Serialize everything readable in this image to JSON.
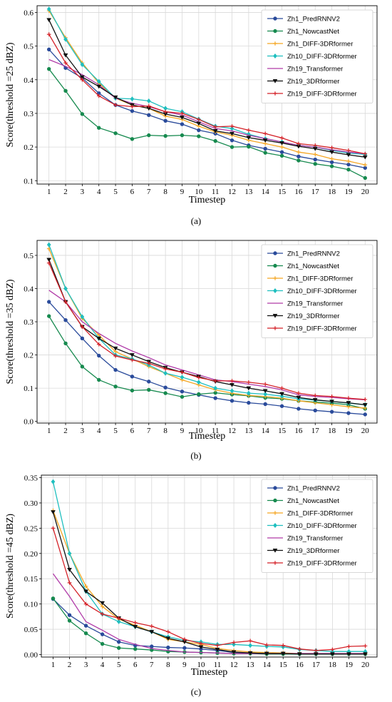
{
  "chart_data": [
    {
      "type": "line",
      "caption": "(a)",
      "xlabel": "Timestep",
      "ylabel": "Score(threshold =25 dBZ)",
      "x": [
        1,
        2,
        3,
        4,
        5,
        6,
        7,
        8,
        9,
        10,
        11,
        12,
        13,
        14,
        15,
        16,
        17,
        18,
        19,
        20
      ],
      "xticks": [
        "1",
        "2",
        "3",
        "4",
        "5",
        "6",
        "7",
        "8",
        "9",
        "10",
        "11",
        "12",
        "13",
        "14",
        "15",
        "16",
        "17",
        "18",
        "19",
        "20"
      ],
      "ylim": [
        0.09,
        0.62
      ],
      "yticks": [
        "0.1",
        "0.2",
        "0.3",
        "0.4",
        "0.5",
        "0.6"
      ],
      "grid": true,
      "legend": "top-right",
      "series": [
        {
          "name": "Zh1_PredRNNV2",
          "color": "#2a4b9b",
          "marker": "circle",
          "values": [
            0.49,
            0.435,
            0.405,
            0.36,
            0.325,
            0.307,
            0.295,
            0.278,
            0.268,
            0.25,
            0.24,
            0.22,
            0.205,
            0.195,
            0.185,
            0.172,
            0.163,
            0.155,
            0.148,
            0.138
          ]
        },
        {
          "name": "Zh1_NowcastNet",
          "color": "#178a4f",
          "marker": "circle",
          "values": [
            0.432,
            0.367,
            0.298,
            0.257,
            0.241,
            0.224,
            0.235,
            0.233,
            0.235,
            0.232,
            0.218,
            0.2,
            0.201,
            0.183,
            0.174,
            0.16,
            0.15,
            0.143,
            0.133,
            0.108
          ]
        },
        {
          "name": "Zh1_DIFF-3DRformer",
          "color": "#f5a623",
          "marker": "plus",
          "values": [
            0.605,
            0.525,
            0.45,
            0.39,
            0.345,
            0.325,
            0.315,
            0.292,
            0.282,
            0.262,
            0.245,
            0.235,
            0.22,
            0.21,
            0.2,
            0.185,
            0.178,
            0.165,
            0.158,
            0.147
          ]
        },
        {
          "name": "Zh10_DIFF-3DRformer",
          "color": "#1fbfbf",
          "marker": "diamond",
          "values": [
            0.61,
            0.52,
            0.445,
            0.395,
            0.345,
            0.343,
            0.337,
            0.315,
            0.305,
            0.283,
            0.262,
            0.255,
            0.238,
            0.225,
            0.215,
            0.205,
            0.2,
            0.19,
            0.182,
            0.178
          ]
        },
        {
          "name": "Zh19_Transformer",
          "color": "#b03aa8",
          "marker": "none",
          "values": [
            0.46,
            0.44,
            0.415,
            0.385,
            0.345,
            0.33,
            0.32,
            0.305,
            0.295,
            0.275,
            0.255,
            0.248,
            0.235,
            0.225,
            0.215,
            0.205,
            0.2,
            0.192,
            0.185,
            0.18
          ]
        },
        {
          "name": "Zh19_3DRformer",
          "color": "#111111",
          "marker": "triangle-down",
          "values": [
            0.578,
            0.473,
            0.408,
            0.38,
            0.348,
            0.325,
            0.315,
            0.298,
            0.288,
            0.27,
            0.248,
            0.24,
            0.228,
            0.22,
            0.212,
            0.202,
            0.195,
            0.185,
            0.177,
            0.17
          ]
        },
        {
          "name": "Zh19_DIFF-3DRformer",
          "color": "#d42027",
          "marker": "plus",
          "values": [
            0.535,
            0.45,
            0.4,
            0.352,
            0.325,
            0.32,
            0.322,
            0.305,
            0.3,
            0.282,
            0.26,
            0.262,
            0.25,
            0.24,
            0.227,
            0.21,
            0.205,
            0.198,
            0.19,
            0.18
          ]
        }
      ]
    },
    {
      "type": "line",
      "caption": "(b)",
      "xlabel": "Timestep",
      "ylabel": "Score(threshold =35 dBZ)",
      "x": [
        1,
        2,
        3,
        4,
        5,
        6,
        7,
        8,
        9,
        10,
        11,
        12,
        13,
        14,
        15,
        16,
        17,
        18,
        19,
        20
      ],
      "xticks": [
        "1",
        "2",
        "3",
        "4",
        "5",
        "6",
        "7",
        "8",
        "9",
        "10",
        "11",
        "12",
        "13",
        "14",
        "15",
        "16",
        "17",
        "18",
        "19",
        "20"
      ],
      "ylim": [
        -0.005,
        0.545
      ],
      "yticks": [
        "0.0",
        "0.1",
        "0.2",
        "0.3",
        "0.4",
        "0.5"
      ],
      "grid": true,
      "legend": "top-right",
      "series": [
        {
          "name": "Zh1_PredRNNV2",
          "color": "#2a4b9b",
          "marker": "circle",
          "values": [
            0.36,
            0.305,
            0.25,
            0.198,
            0.155,
            0.135,
            0.12,
            0.102,
            0.09,
            0.08,
            0.07,
            0.062,
            0.056,
            0.052,
            0.046,
            0.038,
            0.033,
            0.029,
            0.025,
            0.021
          ]
        },
        {
          "name": "Zh1_NowcastNet",
          "color": "#178a4f",
          "marker": "circle",
          "values": [
            0.317,
            0.235,
            0.165,
            0.125,
            0.105,
            0.093,
            0.095,
            0.085,
            0.074,
            0.082,
            0.086,
            0.081,
            0.077,
            0.071,
            0.068,
            0.062,
            0.058,
            0.055,
            0.05,
            0.038
          ]
        },
        {
          "name": "Zh1_DIFF-3DRformer",
          "color": "#f5a623",
          "marker": "plus",
          "values": [
            0.52,
            0.4,
            0.31,
            0.26,
            0.21,
            0.188,
            0.165,
            0.145,
            0.125,
            0.11,
            0.095,
            0.085,
            0.078,
            0.075,
            0.07,
            0.062,
            0.056,
            0.05,
            0.044,
            0.04
          ]
        },
        {
          "name": "Zh10_DIFF-3DRformer",
          "color": "#1fbfbf",
          "marker": "diamond",
          "values": [
            0.532,
            0.4,
            0.315,
            0.25,
            0.2,
            0.188,
            0.17,
            0.145,
            0.133,
            0.118,
            0.1,
            0.092,
            0.085,
            0.082,
            0.076,
            0.068,
            0.064,
            0.06,
            0.055,
            0.05
          ]
        },
        {
          "name": "Zh19_Transformer",
          "color": "#b03aa8",
          "marker": "none",
          "values": [
            0.395,
            0.36,
            0.3,
            0.265,
            0.235,
            0.212,
            0.192,
            0.17,
            0.155,
            0.14,
            0.125,
            0.12,
            0.112,
            0.105,
            0.095,
            0.08,
            0.075,
            0.072,
            0.068,
            0.065
          ]
        },
        {
          "name": "Zh19_3DRformer",
          "color": "#111111",
          "marker": "triangle-down",
          "values": [
            0.487,
            0.36,
            0.285,
            0.25,
            0.22,
            0.2,
            0.18,
            0.162,
            0.148,
            0.135,
            0.12,
            0.11,
            0.1,
            0.092,
            0.083,
            0.072,
            0.065,
            0.06,
            0.056,
            0.05
          ]
        },
        {
          "name": "Zh19_DIFF-3DRformer",
          "color": "#d42027",
          "marker": "plus",
          "values": [
            0.477,
            0.36,
            0.285,
            0.232,
            0.197,
            0.185,
            0.175,
            0.158,
            0.148,
            0.132,
            0.122,
            0.122,
            0.118,
            0.112,
            0.1,
            0.085,
            0.078,
            0.075,
            0.07,
            0.066
          ]
        }
      ]
    },
    {
      "type": "line",
      "caption": "(c)",
      "xlabel": "Timestep",
      "ylabel": "Score(threshold =45 dBZ)",
      "x": [
        1,
        2,
        3,
        4,
        5,
        6,
        7,
        8,
        9,
        10,
        11,
        12,
        13,
        14,
        15,
        16,
        17,
        18,
        19,
        20
      ],
      "xticks": [
        "1",
        "2",
        "3",
        "4",
        "5",
        "6",
        "7",
        "8",
        "9",
        "10",
        "11",
        "12",
        "13",
        "14",
        "15",
        "16",
        "17",
        "18",
        "19",
        "20"
      ],
      "ylim": [
        -0.005,
        0.355
      ],
      "yticks": [
        "0.00",
        "0.05",
        "0.10",
        "0.15",
        "0.20",
        "0.25",
        "0.30",
        "0.35"
      ],
      "grid": true,
      "legend": "top-right",
      "series": [
        {
          "name": "Zh1_PredRNNV2",
          "color": "#2a4b9b",
          "marker": "circle",
          "values": [
            0.11,
            0.078,
            0.057,
            0.04,
            0.025,
            0.018,
            0.016,
            0.014,
            0.013,
            0.011,
            0.008,
            0.004,
            0.003,
            0.002,
            0.002,
            0.001,
            0.001,
            0.001,
            0.001,
            0.001
          ]
        },
        {
          "name": "Zh1_NowcastNet",
          "color": "#178a4f",
          "marker": "circle",
          "values": [
            0.111,
            0.067,
            0.042,
            0.021,
            0.013,
            0.011,
            0.009,
            0.006,
            0.005,
            0.004,
            0.003,
            0.002,
            0.002,
            0.001,
            0.001,
            0.001,
            0.001,
            0.001,
            0.001,
            0.001
          ]
        },
        {
          "name": "Zh1_DIFF-3DRformer",
          "color": "#f5a623",
          "marker": "plus",
          "values": [
            0.285,
            0.2,
            0.135,
            0.095,
            0.07,
            0.058,
            0.045,
            0.03,
            0.025,
            0.02,
            0.012,
            0.008,
            0.005,
            0.004,
            0.003,
            0.002,
            0.002,
            0.002,
            0.002,
            0.002
          ]
        },
        {
          "name": "Zh10_DIFF-3DRformer",
          "color": "#1fbfbf",
          "marker": "diamond",
          "values": [
            0.342,
            0.2,
            0.125,
            0.08,
            0.065,
            0.055,
            0.045,
            0.035,
            0.028,
            0.025,
            0.02,
            0.02,
            0.018,
            0.016,
            0.015,
            0.01,
            0.008,
            0.006,
            0.006,
            0.006
          ]
        },
        {
          "name": "Zh19_Transformer",
          "color": "#b03aa8",
          "marker": "none",
          "values": [
            0.16,
            0.115,
            0.065,
            0.048,
            0.03,
            0.02,
            0.012,
            0.008,
            0.005,
            0.004,
            0.003,
            0.002,
            0.002,
            0.002,
            0.002,
            0.002,
            0.002,
            0.002,
            0.002,
            0.002
          ]
        },
        {
          "name": "Zh19_3DRformer",
          "color": "#111111",
          "marker": "triangle-down",
          "values": [
            0.282,
            0.168,
            0.125,
            0.102,
            0.072,
            0.055,
            0.045,
            0.032,
            0.025,
            0.015,
            0.01,
            0.005,
            0.003,
            0.002,
            0.002,
            0.001,
            0.001,
            0.001,
            0.001,
            0.001
          ]
        },
        {
          "name": "Zh19_DIFF-3DRformer",
          "color": "#d42027",
          "marker": "plus",
          "values": [
            0.25,
            0.142,
            0.1,
            0.08,
            0.072,
            0.063,
            0.056,
            0.045,
            0.03,
            0.022,
            0.018,
            0.024,
            0.027,
            0.019,
            0.018,
            0.011,
            0.008,
            0.01,
            0.016,
            0.017
          ]
        }
      ]
    }
  ]
}
